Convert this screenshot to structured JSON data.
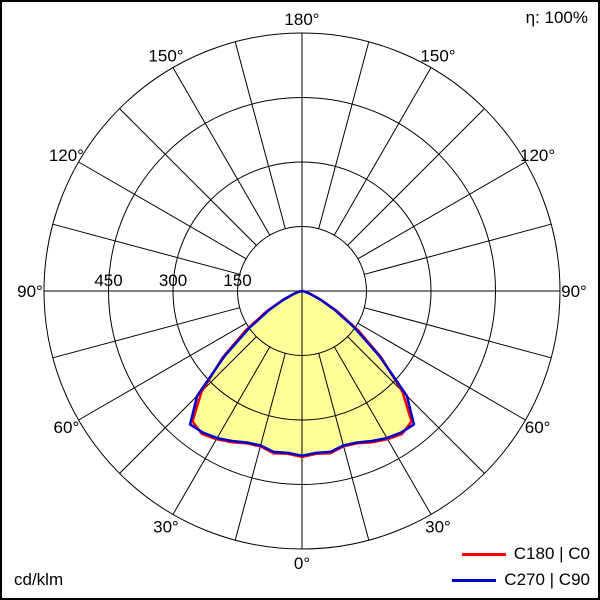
{
  "meta": {
    "efficiency_label": "η: 100%",
    "unit_label": "cd/klm"
  },
  "legend": [
    {
      "label": "C180 | C0",
      "color": "#ff0000"
    },
    {
      "label": "C270 | C90",
      "color": "#0000cd"
    }
  ],
  "chart_data": {
    "type": "polar",
    "description": "Luminous intensity distribution curve of a luminaire; radius is intensity in cd/klm, angle is beam angle from nadir (0° bottom, 180° top)",
    "rmax": 600,
    "grid_step_deg": 15,
    "angle_labels_deg": [
      0,
      30,
      60,
      90,
      120,
      150,
      180
    ],
    "radial_ticks": [
      150,
      300,
      450,
      600
    ],
    "radial_tick_labels": [
      {
        "value": 450,
        "label": "450"
      },
      {
        "value": 300,
        "label": "300"
      },
      {
        "value": 150,
        "label": "150"
      }
    ],
    "fill_color": "#ffff99",
    "angles_deg": [
      0,
      5,
      10,
      15,
      20,
      25,
      30,
      35,
      40,
      45,
      50,
      55,
      60,
      65,
      70,
      75,
      80,
      85,
      90
    ],
    "series": [
      {
        "name": "C180-C0",
        "color": "#ff0000",
        "symmetric": true,
        "values": [
          386,
          380,
          383,
          374,
          377,
          388,
          398,
          406,
          396,
          330,
          240,
          160,
          95,
          50,
          22,
          9,
          3,
          1,
          0
        ]
      },
      {
        "name": "C270-C90",
        "color": "#0000cd",
        "symmetric": true,
        "values": [
          383,
          378,
          380,
          372,
          375,
          385,
          395,
          402,
          405,
          345,
          235,
          150,
          88,
          46,
          20,
          8,
          3,
          1,
          0
        ]
      }
    ]
  }
}
